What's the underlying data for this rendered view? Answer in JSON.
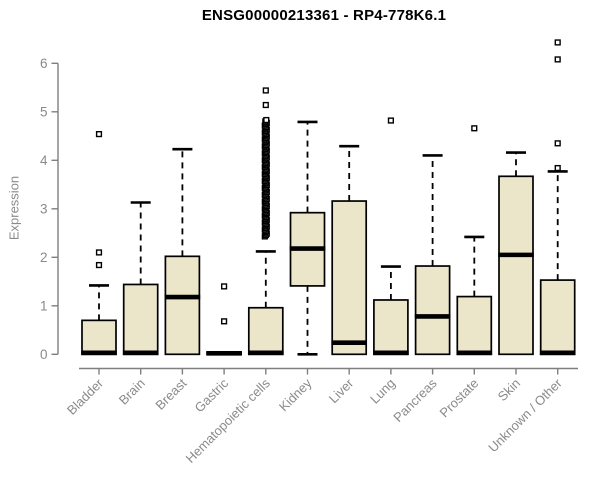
{
  "title": "ENSG00000213361 - RP4-778K6.1",
  "chart_data": {
    "type": "boxplot",
    "title": "ENSG00000213361 - RP4-778K6.1",
    "xlabel": "",
    "ylabel": "Expression",
    "ylim": [
      0,
      6
    ],
    "yticks": [
      0,
      1,
      2,
      3,
      4,
      5,
      6
    ],
    "grid": false,
    "legend": null,
    "categories": [
      "Bladder",
      "Brain",
      "Breast",
      "Gastric",
      "Hematopoietic cells",
      "Kidney",
      "Liver",
      "Lung",
      "Pancreas",
      "Prostate",
      "Skin",
      "Unknown / Other"
    ],
    "boxes": [
      {
        "category": "Bladder",
        "q1": 0,
        "median": 0.03,
        "q3": 0.7,
        "whisker_low": 0,
        "whisker_high": 1.42,
        "outliers": [
          1.84,
          2.1,
          4.54
        ],
        "outlier_band": null
      },
      {
        "category": "Brain",
        "q1": 0,
        "median": 0.03,
        "q3": 1.44,
        "whisker_low": 0,
        "whisker_high": 3.13,
        "outliers": [],
        "outlier_band": null
      },
      {
        "category": "Breast",
        "q1": 0,
        "median": 1.18,
        "q3": 2.02,
        "whisker_low": 0,
        "whisker_high": 4.23,
        "outliers": [],
        "outlier_band": null
      },
      {
        "category": "Gastric",
        "q1": 0,
        "median": 0.02,
        "q3": 0.04,
        "whisker_low": 0,
        "whisker_high": 0.04,
        "outliers": [
          0.68,
          1.4
        ],
        "outlier_band": null
      },
      {
        "category": "Hematopoietic cells",
        "q1": 0,
        "median": 0.03,
        "q3": 0.96,
        "whisker_low": 0,
        "whisker_high": 2.12,
        "outliers": [
          5.14,
          5.44
        ],
        "outlier_band": {
          "from": 2.43,
          "to": 4.83,
          "count": 85
        }
      },
      {
        "category": "Kidney",
        "q1": 1.41,
        "median": 2.18,
        "q3": 2.92,
        "whisker_low": 0,
        "whisker_high": 4.79,
        "outliers": [],
        "outlier_band": null
      },
      {
        "category": "Liver",
        "q1": 0,
        "median": 0.24,
        "q3": 3.16,
        "whisker_low": 0,
        "whisker_high": 4.29,
        "outliers": [],
        "outlier_band": null
      },
      {
        "category": "Lung",
        "q1": 0,
        "median": 0.03,
        "q3": 1.12,
        "whisker_low": 0,
        "whisker_high": 1.81,
        "outliers": [
          4.82
        ],
        "outlier_band": null
      },
      {
        "category": "Pancreas",
        "q1": 0,
        "median": 0.78,
        "q3": 1.82,
        "whisker_low": 0,
        "whisker_high": 4.1,
        "outliers": [],
        "outlier_band": null
      },
      {
        "category": "Prostate",
        "q1": 0,
        "median": 0.03,
        "q3": 1.19,
        "whisker_low": 0,
        "whisker_high": 2.42,
        "outliers": [
          4.66
        ],
        "outlier_band": null
      },
      {
        "category": "Skin",
        "q1": 0,
        "median": 2.05,
        "q3": 3.67,
        "whisker_low": 0,
        "whisker_high": 4.16,
        "outliers": [],
        "outlier_band": null
      },
      {
        "category": "Unknown / Other",
        "q1": 0,
        "median": 0.03,
        "q3": 1.53,
        "whisker_low": 0,
        "whisker_high": 3.77,
        "outliers": [
          3.84,
          4.35,
          6.08,
          6.43
        ],
        "outlier_band": null
      }
    ],
    "colors": {
      "box_fill": "#EBE5C9",
      "box_stroke": "#000000",
      "median": "#000000",
      "whisker": "#000000",
      "outlier_stroke": "#000000",
      "outlier_fill": "#ffffff",
      "axis": "#7f7f7f",
      "tick_text": "#8a8a8a",
      "title_text": "#000000"
    }
  }
}
